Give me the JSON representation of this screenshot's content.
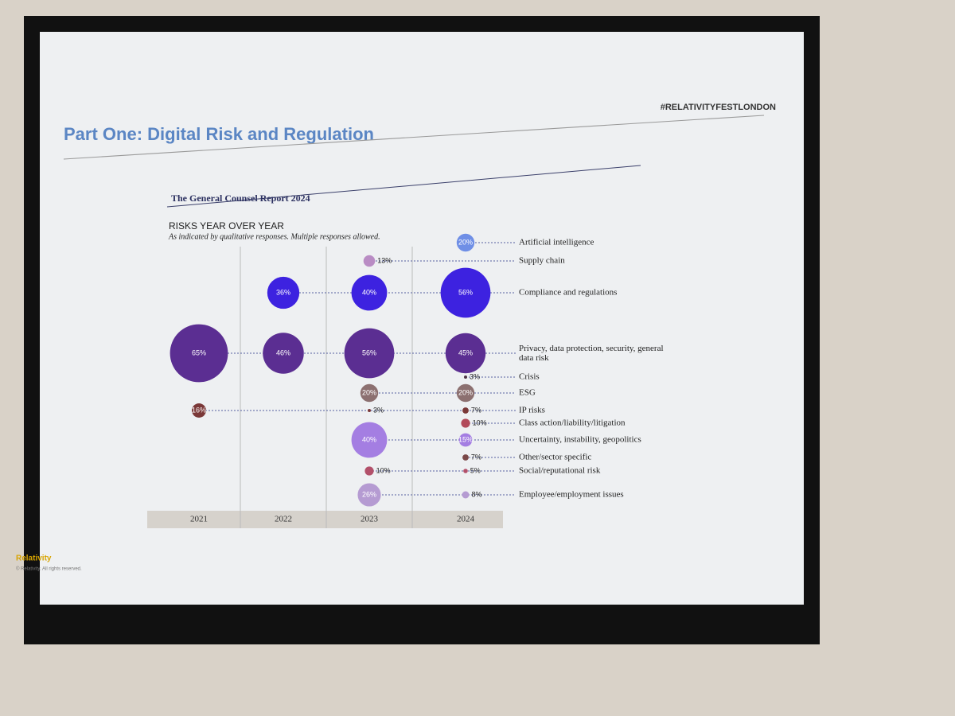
{
  "slide": {
    "heading": "Part One: Digital Risk and Regulation",
    "hashtag": "#RELATIVITYFESTLONDON",
    "report": "The General Counsel Report 2024",
    "brand": "Relativity",
    "copyright": "© Relativity. All rights reserved."
  },
  "chart_data": {
    "type": "bubble",
    "title": "RISKS YEAR OVER YEAR",
    "subtitle": "As indicated by qualitative responses. Multiple responses allowed.",
    "categories": [
      "2021",
      "2022",
      "2023",
      "2024"
    ],
    "series": [
      {
        "name": "Artificial intelligence",
        "color": "#6f8fe6",
        "values": [
          null,
          null,
          null,
          20
        ],
        "value_labels": [
          null,
          null,
          null,
          "20%"
        ]
      },
      {
        "name": "Supply chain",
        "color": "#b98cc4",
        "values": [
          null,
          null,
          13,
          null
        ],
        "value_labels": [
          null,
          null,
          "13%",
          null
        ]
      },
      {
        "name": "Compliance and regulations",
        "color": "#3d22e0",
        "values": [
          null,
          36,
          40,
          56
        ],
        "value_labels": [
          null,
          "36%",
          "40%",
          "56%"
        ]
      },
      {
        "name": "Privacy, data protection, security, general data risk",
        "color": "#5b2e92",
        "values": [
          65,
          46,
          56,
          45
        ],
        "value_labels": [
          "65%",
          "46%",
          "56%",
          "45%"
        ]
      },
      {
        "name": "Crisis",
        "color": "#4e3545",
        "values": [
          null,
          null,
          null,
          3
        ],
        "value_labels": [
          null,
          null,
          null,
          "3%"
        ]
      },
      {
        "name": "ESG",
        "color": "#8c7070",
        "values": [
          null,
          null,
          20,
          20
        ],
        "value_labels": [
          null,
          null,
          "20%",
          "20%"
        ]
      },
      {
        "name": "IP risks",
        "color": "#7a3838",
        "values": [
          16,
          null,
          3,
          7
        ],
        "value_labels": [
          "16%",
          null,
          "3%",
          "7%"
        ]
      },
      {
        "name": "Class action/liability/litigation",
        "color": "#b24a5a",
        "values": [
          null,
          null,
          null,
          10
        ],
        "value_labels": [
          null,
          null,
          null,
          "10%"
        ]
      },
      {
        "name": "Uncertainty, instability, geopolitics",
        "color": "#a47ee2",
        "values": [
          null,
          null,
          40,
          15
        ],
        "value_labels": [
          null,
          null,
          "40%",
          "15%"
        ]
      },
      {
        "name": "Other/sector specific",
        "color": "#7a4848",
        "values": [
          null,
          null,
          null,
          7
        ],
        "value_labels": [
          null,
          null,
          null,
          "7%"
        ]
      },
      {
        "name": "Social/reputational risk",
        "color": "#b2506a",
        "values": [
          null,
          null,
          10,
          5
        ],
        "value_labels": [
          null,
          null,
          "10%",
          "5%"
        ]
      },
      {
        "name": "Employee/employment issues",
        "color": "#b59bd2",
        "values": [
          null,
          null,
          26,
          8
        ],
        "value_labels": [
          null,
          null,
          "26%",
          "8%"
        ]
      }
    ]
  }
}
